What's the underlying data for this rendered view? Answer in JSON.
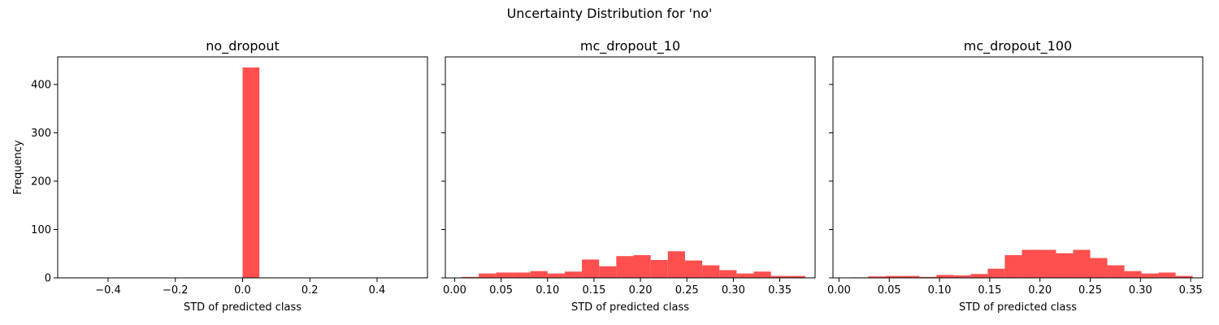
{
  "figure": {
    "suptitle": "Uncertainty Distribution for 'no'",
    "bar_color": "#ff4f4f",
    "sharey": true
  },
  "chart_data": [
    {
      "type": "bar",
      "title": "no_dropout",
      "xlabel": "STD of predicted class",
      "ylabel": "Frequency",
      "xlim": [
        -0.55,
        0.55
      ],
      "ylim": [
        0,
        457
      ],
      "xticks": [
        -0.4,
        -0.2,
        0.0,
        0.2,
        0.4
      ],
      "xtick_labels": [
        "−0.4",
        "−0.2",
        "0.0",
        "0.2",
        "0.4"
      ],
      "yticks": [
        0,
        100,
        200,
        300,
        400
      ],
      "ytick_labels": [
        "0",
        "100",
        "200",
        "300",
        "400"
      ],
      "bin_width": 0.05,
      "bins": [
        {
          "x": 0.0,
          "count": 435
        }
      ]
    },
    {
      "type": "bar",
      "title": "mc_dropout_10",
      "xlabel": "STD of predicted class",
      "ylabel": "",
      "xlim": [
        -0.01,
        0.388
      ],
      "ylim": [
        0,
        457
      ],
      "xticks": [
        0.0,
        0.05,
        0.1,
        0.15,
        0.2,
        0.25,
        0.3,
        0.35
      ],
      "xtick_labels": [
        "0.00",
        "0.05",
        "0.10",
        "0.15",
        "0.20",
        "0.25",
        "0.30",
        "0.35"
      ],
      "yticks": [
        0,
        100,
        200,
        300,
        400
      ],
      "ytick_labels": [
        "",
        "",
        "",
        "",
        ""
      ],
      "bin_width": 0.0185,
      "bins": [
        {
          "x": 0.0075,
          "count": 2
        },
        {
          "x": 0.026,
          "count": 9
        },
        {
          "x": 0.0445,
          "count": 11
        },
        {
          "x": 0.063,
          "count": 11
        },
        {
          "x": 0.0815,
          "count": 14
        },
        {
          "x": 0.1,
          "count": 9
        },
        {
          "x": 0.1185,
          "count": 13
        },
        {
          "x": 0.137,
          "count": 38
        },
        {
          "x": 0.1555,
          "count": 24
        },
        {
          "x": 0.174,
          "count": 45
        },
        {
          "x": 0.1925,
          "count": 47
        },
        {
          "x": 0.211,
          "count": 37
        },
        {
          "x": 0.2295,
          "count": 55
        },
        {
          "x": 0.248,
          "count": 36
        },
        {
          "x": 0.2665,
          "count": 26
        },
        {
          "x": 0.285,
          "count": 16
        },
        {
          "x": 0.3035,
          "count": 9
        },
        {
          "x": 0.322,
          "count": 13
        },
        {
          "x": 0.3405,
          "count": 4
        },
        {
          "x": 0.359,
          "count": 4
        }
      ]
    },
    {
      "type": "bar",
      "title": "mc_dropout_100",
      "xlabel": "STD of predicted class",
      "ylabel": "",
      "xlim": [
        -0.006,
        0.362
      ],
      "ylim": [
        0,
        457
      ],
      "xticks": [
        0.0,
        0.05,
        0.1,
        0.15,
        0.2,
        0.25,
        0.3,
        0.35
      ],
      "xtick_labels": [
        "0.00",
        "0.05",
        "0.10",
        "0.15",
        "0.20",
        "0.25",
        "0.30",
        "0.35"
      ],
      "yticks": [
        0,
        100,
        200,
        300,
        400
      ],
      "ytick_labels": [
        "",
        "",
        "",
        "",
        ""
      ],
      "bin_width": 0.017,
      "bins": [
        {
          "x": 0.012,
          "count": 1
        },
        {
          "x": 0.029,
          "count": 3
        },
        {
          "x": 0.046,
          "count": 4
        },
        {
          "x": 0.063,
          "count": 4
        },
        {
          "x": 0.08,
          "count": 2
        },
        {
          "x": 0.097,
          "count": 6
        },
        {
          "x": 0.114,
          "count": 5
        },
        {
          "x": 0.131,
          "count": 8
        },
        {
          "x": 0.148,
          "count": 19
        },
        {
          "x": 0.165,
          "count": 47
        },
        {
          "x": 0.182,
          "count": 58
        },
        {
          "x": 0.199,
          "count": 58
        },
        {
          "x": 0.216,
          "count": 51
        },
        {
          "x": 0.233,
          "count": 58
        },
        {
          "x": 0.25,
          "count": 41
        },
        {
          "x": 0.267,
          "count": 26
        },
        {
          "x": 0.284,
          "count": 14
        },
        {
          "x": 0.301,
          "count": 9
        },
        {
          "x": 0.318,
          "count": 11
        },
        {
          "x": 0.335,
          "count": 4
        }
      ]
    }
  ]
}
